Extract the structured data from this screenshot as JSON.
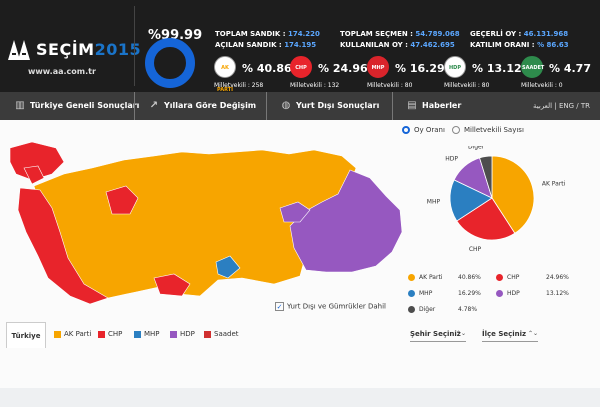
{
  "header": {
    "brand": "SEÇİM",
    "brand_year": "2015",
    "url": "www.aa.com.tr",
    "total_pct": "%99.99",
    "stats_left": [
      {
        "label": "TOPLAM SANDIK",
        "value": "174.220"
      },
      {
        "label": "AÇILAN SANDIK",
        "value": "174.195"
      }
    ],
    "stats_mid": [
      {
        "label": "TOPLAM SEÇMEN",
        "value": "54.789.068"
      },
      {
        "label": "KULLANILAN OY",
        "value": "47.462.695"
      }
    ],
    "stats_right": [
      {
        "label": "GEÇERLİ OY",
        "value": "46.131.968"
      },
      {
        "label": "KATILIM ORANI",
        "value": "% 86.63"
      }
    ],
    "parties": [
      {
        "name": "AK PARTİ",
        "pct": "% 40.86",
        "seats_label": "Milletvekili",
        "seats": "258",
        "color": "#f7a500"
      },
      {
        "name": "CHP",
        "pct": "% 24.96",
        "seats_label": "Milletvekili",
        "seats": "132",
        "color": "#e8242b"
      },
      {
        "name": "MHP",
        "pct": "% 16.29",
        "seats_label": "Milletvekili",
        "seats": "80",
        "color": "#d9242b"
      },
      {
        "name": "HDP",
        "pct": "% 13.12",
        "seats_label": "Milletvekili",
        "seats": "80",
        "color": "#7a3f9e"
      },
      {
        "name": "SAADET",
        "pct": "% 4.77",
        "seats_label": "Milletvekili",
        "seats": "0",
        "color": "#2e8b4c"
      }
    ]
  },
  "nav": {
    "items": [
      {
        "label": "Türkiye Geneli Sonuçları",
        "icon": "chart-bars-icon"
      },
      {
        "label": "Yıllara Göre Değişim",
        "icon": "trend-icon"
      },
      {
        "label": "Yurt Dışı Sonuçları",
        "icon": "globe-icon"
      },
      {
        "label": "Haberler",
        "icon": "news-icon"
      }
    ],
    "lang_arabic": "العربية",
    "lang_eng": "ENG",
    "lang_tr": "TR"
  },
  "options": {
    "oy_orani": "Oy Oranı",
    "milletvekili": "Milletvekili Sayısı",
    "yurt_disi": "Yurt Dışı ve Gümrükler Dahil"
  },
  "chart_data": {
    "type": "pie",
    "categories": [
      "AK Parti",
      "CHP",
      "MHP",
      "HDP",
      "Diğer"
    ],
    "values": [
      40.86,
      24.96,
      16.29,
      13.12,
      4.78
    ],
    "value_labels": [
      "40.86%",
      "24.96%",
      "16.29%",
      "13.12%",
      "4.78%"
    ],
    "colors": [
      "#f7a500",
      "#e8242b",
      "#2b7fc1",
      "#9658c0",
      "#4d4d4d"
    ]
  },
  "filters": {
    "tab": "Türkiye",
    "legend": [
      {
        "label": "AK Parti",
        "color": "#f7a500"
      },
      {
        "label": "CHP",
        "color": "#e8242b"
      },
      {
        "label": "MHP",
        "color": "#2b7fc1"
      },
      {
        "label": "HDP",
        "color": "#9658c0"
      },
      {
        "label": "Saadet",
        "color": "#d03030"
      }
    ],
    "sehir": "Şehir Seçiniz",
    "ilce": "İlçe Seçiniz"
  }
}
